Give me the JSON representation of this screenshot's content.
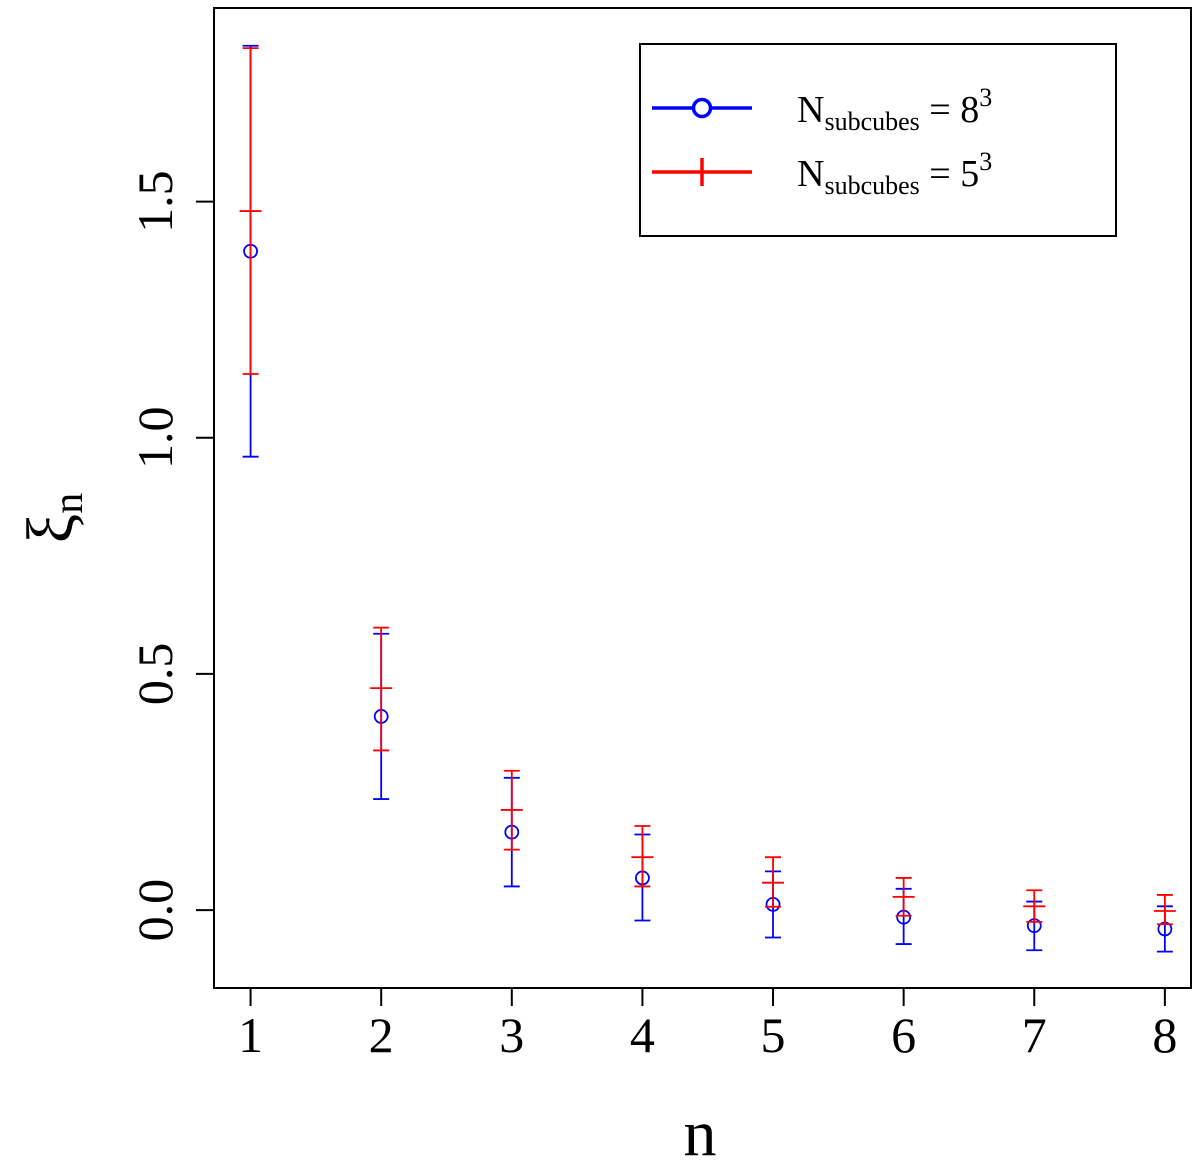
{
  "chart_data": {
    "type": "scatter",
    "x_label": "n",
    "y_label_base": "ξ",
    "y_label_sub": "n",
    "x_ticks": [
      "1",
      "2",
      "3",
      "4",
      "5",
      "6",
      "7",
      "8"
    ],
    "y_ticks": [
      "0.0",
      "0.5",
      "1.0",
      "1.5"
    ],
    "xlim": [
      0.72,
      8.2
    ],
    "ylim": [
      -0.165,
      1.91
    ],
    "grid": false,
    "legend_position": "top-right",
    "series": [
      {
        "legend_base": "N",
        "legend_sub": "subcubes",
        "legend_eq": " = 8",
        "legend_sup": "3",
        "marker": "circle",
        "color": "#0000ff",
        "x": [
          1,
          2,
          3,
          4,
          5,
          6,
          7,
          8
        ],
        "y": [
          1.395,
          0.41,
          0.165,
          0.068,
          0.012,
          -0.015,
          -0.033,
          -0.04
        ],
        "err_low": [
          0.96,
          0.235,
          0.05,
          -0.022,
          -0.058,
          -0.072,
          -0.085,
          -0.088
        ],
        "err_high": [
          1.83,
          0.585,
          0.28,
          0.16,
          0.082,
          0.045,
          0.018,
          0.008
        ]
      },
      {
        "legend_base": "N",
        "legend_sub": "subcubes",
        "legend_eq": " = 5",
        "legend_sup": "3",
        "marker": "plus",
        "color": "#ff0000",
        "x": [
          1,
          2,
          3,
          4,
          5,
          6,
          7,
          8
        ],
        "y": [
          1.48,
          0.47,
          0.212,
          0.112,
          0.058,
          0.028,
          0.008,
          -0.002
        ],
        "err_low": [
          1.135,
          0.338,
          0.128,
          0.05,
          0.007,
          -0.012,
          -0.025,
          -0.03
        ],
        "err_high": [
          1.825,
          0.598,
          0.295,
          0.178,
          0.112,
          0.068,
          0.042,
          0.032
        ]
      }
    ]
  }
}
